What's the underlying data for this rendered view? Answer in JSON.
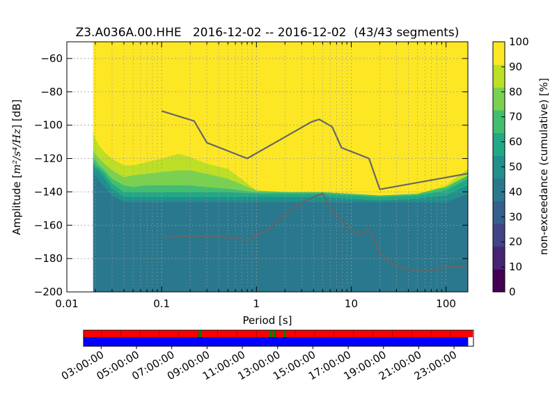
{
  "chart_data": {
    "type": "heatmap",
    "title": "Z3.A036A.00.HHE   2016-12-02 -- 2016-12-02  (43/43 segments)",
    "xlabel": "Period [s]",
    "ylabel_prefix": "Amplitude [",
    "ylabel_units": "m²/s⁴/Hz",
    "ylabel_suffix": "] [dB]",
    "x_scale": "log",
    "xlim": [
      0.01,
      170
    ],
    "ylim": [
      -200,
      -50
    ],
    "x_ticks": [
      {
        "value": 0.01,
        "label": "0.01"
      },
      {
        "value": 0.1,
        "label": "0.1"
      },
      {
        "value": 1,
        "label": "1"
      },
      {
        "value": 10,
        "label": "10"
      },
      {
        "value": 100,
        "label": "100"
      }
    ],
    "y_ticks": [
      {
        "value": -60,
        "label": "−60"
      },
      {
        "value": -80,
        "label": "−80"
      },
      {
        "value": -100,
        "label": "−100"
      },
      {
        "value": -120,
        "label": "−120"
      },
      {
        "value": -140,
        "label": "−140"
      },
      {
        "value": -160,
        "label": "−160"
      },
      {
        "value": -180,
        "label": "−180"
      },
      {
        "value": -200,
        "label": "−200"
      }
    ],
    "grid": true,
    "colorbar": {
      "label": "non-exceedance (cumulative) [%]",
      "range": [
        0,
        100
      ],
      "ticks": [
        "0",
        "10",
        "20",
        "30",
        "40",
        "50",
        "60",
        "70",
        "80",
        "90",
        "100"
      ],
      "colors": [
        "#440154",
        "#482475",
        "#414487",
        "#355f8d",
        "#2a788e",
        "#21908d",
        "#22a884",
        "#42be71",
        "#7ad151",
        "#bddf26",
        "#fde725"
      ]
    },
    "data_start_period": 0.019,
    "heatmap_bands": {
      "x": [
        0.019,
        0.02,
        0.022,
        0.025,
        0.03,
        0.04,
        0.05,
        0.07,
        0.1,
        0.15,
        0.2,
        0.3,
        0.5,
        1,
        2,
        5,
        10,
        20,
        50,
        100,
        170
      ],
      "bands": [
        {
          "percent": 35,
          "from": [
            -200,
            -200,
            -200,
            -200,
            -200,
            -200,
            -200,
            -200,
            -200,
            -200,
            -200,
            -200,
            -200,
            -200,
            -200,
            -200,
            -200,
            -200,
            -200,
            -200,
            -200
          ],
          "to": [
            -127,
            -130,
            -133,
            -137,
            -142,
            -146,
            -146,
            -146,
            -146,
            -146,
            -146,
            -146,
            -146,
            -146,
            -146,
            -146,
            -146,
            -146,
            -146,
            -146,
            -141
          ]
        },
        {
          "percent": 45,
          "from": [
            -127,
            -130,
            -133,
            -137,
            -142,
            -146,
            -146,
            -146,
            -146,
            -146,
            -146,
            -146,
            -146,
            -146,
            -146,
            -146,
            -146,
            -146,
            -146,
            -146,
            -141
          ],
          "to": [
            -124,
            -126,
            -128,
            -132,
            -138,
            -143,
            -143,
            -143,
            -143,
            -143,
            -143,
            -143,
            -143,
            -143,
            -143,
            -143,
            -144,
            -145,
            -144,
            -142,
            -136
          ]
        },
        {
          "percent": 55,
          "from": [
            -124,
            -126,
            -128,
            -132,
            -138,
            -143,
            -143,
            -143,
            -143,
            -143,
            -143,
            -143,
            -143,
            -143,
            -143,
            -143,
            -144,
            -145,
            -144,
            -142,
            -136
          ],
          "to": [
            -122,
            -124,
            -126,
            -129,
            -135,
            -140,
            -140,
            -140,
            -140,
            -140,
            -140,
            -140,
            -140,
            -141,
            -141,
            -141,
            -142,
            -143,
            -142,
            -139,
            -132
          ]
        },
        {
          "percent": 65,
          "from": [
            -122,
            -124,
            -126,
            -129,
            -135,
            -140,
            -140,
            -140,
            -140,
            -140,
            -140,
            -140,
            -140,
            -141,
            -141,
            -141,
            -142,
            -143,
            -142,
            -139,
            -132
          ],
          "to": [
            -119,
            -121,
            -124,
            -127,
            -132,
            -136,
            -137,
            -136,
            -136,
            -136,
            -136,
            -137,
            -138,
            -140,
            -140,
            -140,
            -141,
            -142,
            -141,
            -137,
            -130
          ]
        },
        {
          "percent": 80,
          "from": [
            -119,
            -121,
            -124,
            -127,
            -132,
            -136,
            -137,
            -136,
            -136,
            -136,
            -136,
            -137,
            -138,
            -140,
            -140,
            -140,
            -141,
            -142,
            -141,
            -137,
            -130
          ],
          "to": [
            -115,
            -117,
            -120,
            -123,
            -127,
            -131,
            -130,
            -129,
            -128,
            -127,
            -127,
            -129,
            -132,
            -139,
            -140,
            -140,
            -141,
            -142,
            -141,
            -137,
            -130
          ]
        },
        {
          "percent": 90,
          "from": [
            -115,
            -117,
            -120,
            -123,
            -127,
            -131,
            -130,
            -129,
            -128,
            -127,
            -127,
            -129,
            -132,
            -139,
            -140,
            -140,
            -141,
            -142,
            -141,
            -137,
            -130
          ],
          "to": [
            -104,
            -108,
            -112,
            -116,
            -120,
            -124,
            -124,
            -122,
            -120,
            -117,
            -119,
            -123,
            -126,
            -139,
            -140,
            -140,
            -141,
            -142,
            -141,
            -136,
            -126
          ]
        },
        {
          "percent": 100,
          "from": [
            -104,
            -108,
            -112,
            -116,
            -120,
            -124,
            -124,
            -122,
            -120,
            -117,
            -119,
            -123,
            -126,
            -139,
            -140,
            -140,
            -141,
            -142,
            -141,
            -136,
            -126
          ],
          "to": [
            -50,
            -50,
            -50,
            -50,
            -50,
            -50,
            -50,
            -50,
            -50,
            -50,
            -50,
            -50,
            -50,
            -50,
            -50,
            -50,
            -50,
            -50,
            -50,
            -50,
            -50
          ]
        }
      ]
    },
    "series": [
      {
        "x": [
          0.1,
          0.22,
          0.3,
          0.8,
          3.8,
          4.6,
          6.3,
          7.9,
          15.4,
          20,
          170
        ],
        "y": [
          -91.5,
          -97.5,
          -110.5,
          -120,
          -98,
          -96.5,
          -101,
          -113.5,
          -120,
          -138.5,
          -129
        ]
      },
      {
        "x": [
          0.1,
          0.17,
          0.4,
          0.8,
          1.3,
          2.5,
          4,
          5,
          6,
          10,
          12,
          15.4,
          20,
          30,
          50,
          70,
          100,
          170
        ],
        "y": [
          -167.5,
          -166.5,
          -166.5,
          -169,
          -163,
          -149,
          -143,
          -141,
          -150,
          -163,
          -166,
          -162,
          -177,
          -185,
          -187.5,
          -187.5,
          -185,
          -185
        ]
      }
    ],
    "timeline": {
      "tick_labels": [
        "03:00:00",
        "05:00:00",
        "07:00:00",
        "09:00:00",
        "11:00:00",
        "13:00:00",
        "15:00:00",
        "17:00:00",
        "19:00:00",
        "21:00:00",
        "23:00:00"
      ],
      "tick_hours": [
        3,
        5,
        7,
        9,
        11,
        13,
        15,
        17,
        19,
        21,
        23
      ],
      "start_hour": 2.0,
      "end_hour": 24.1,
      "coverage_start_hour": 2.0,
      "coverage_end_hour": 23.8,
      "color_top": "#ff0000",
      "color_bottom": "#0000ff",
      "gap_color": "#008000",
      "gaps_hours": [
        8.6,
        12.6,
        12.8,
        13.4
      ]
    }
  }
}
